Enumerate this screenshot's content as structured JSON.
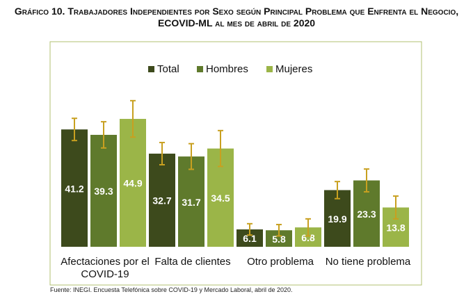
{
  "chart_data": {
    "type": "bar",
    "title": "Gráfico 10. Trabajadores Independientes por Sexo según Principal Problema que Enfrenta el Negocio, ECOVID-ML al mes de abril de 2020",
    "categories": [
      "Afectaciones por el COVID-19",
      "Falta de clientes",
      "Otro problema",
      "No tiene problema"
    ],
    "series": [
      {
        "name": "Total",
        "color": "#3d4a1c",
        "values": [
          41.2,
          32.7,
          6.1,
          19.9
        ],
        "errors": [
          3.9,
          3.9,
          2,
          3
        ]
      },
      {
        "name": "Hombres",
        "color": "#5f7a2c",
        "values": [
          39.3,
          31.7,
          5.8,
          23.3
        ],
        "errors": [
          4.6,
          4.5,
          2,
          4
        ]
      },
      {
        "name": "Mujeres",
        "color": "#9bb548",
        "values": [
          44.9,
          34.5,
          6.8,
          13.8
        ],
        "errors": [
          6.4,
          6.3,
          3,
          4
        ]
      }
    ],
    "error_color": "#c8a020",
    "ylim": [
      0,
      72
    ],
    "source": "Fuente:  INEGI. Encuesta Telefónica sobre COVID-19 y Mercado Laboral, abril de 2020."
  }
}
